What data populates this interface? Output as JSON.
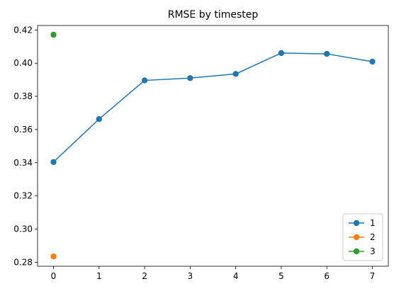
{
  "chart_data": {
    "type": "line",
    "title": "RMSE by timestep",
    "xlabel": "",
    "ylabel": "",
    "x_ticks": [
      0,
      1,
      2,
      3,
      4,
      5,
      6,
      7
    ],
    "y_ticks": [
      0.28,
      0.3,
      0.32,
      0.34,
      0.36,
      0.38,
      0.4,
      0.42
    ],
    "y_tick_labels": [
      "0.28",
      "0.30",
      "0.32",
      "0.34",
      "0.36",
      "0.38",
      "0.40",
      "0.42"
    ],
    "xlim": [
      -0.35,
      7.35
    ],
    "ylim": [
      0.2776,
      0.4227
    ],
    "grid": false,
    "legend_position": "bottom-right",
    "series": [
      {
        "name": "1",
        "color": "#1f77b4",
        "x": [
          0,
          1,
          2,
          3,
          4,
          5,
          6,
          7
        ],
        "y": [
          0.3404,
          0.3663,
          0.3896,
          0.391,
          0.3935,
          0.4061,
          0.4056,
          0.4009
        ]
      },
      {
        "name": "2",
        "color": "#ff7f0e",
        "x": [
          0
        ],
        "y": [
          0.2835
        ]
      },
      {
        "name": "3",
        "color": "#2ca02c",
        "x": [
          0
        ],
        "y": [
          0.4171
        ]
      }
    ]
  }
}
